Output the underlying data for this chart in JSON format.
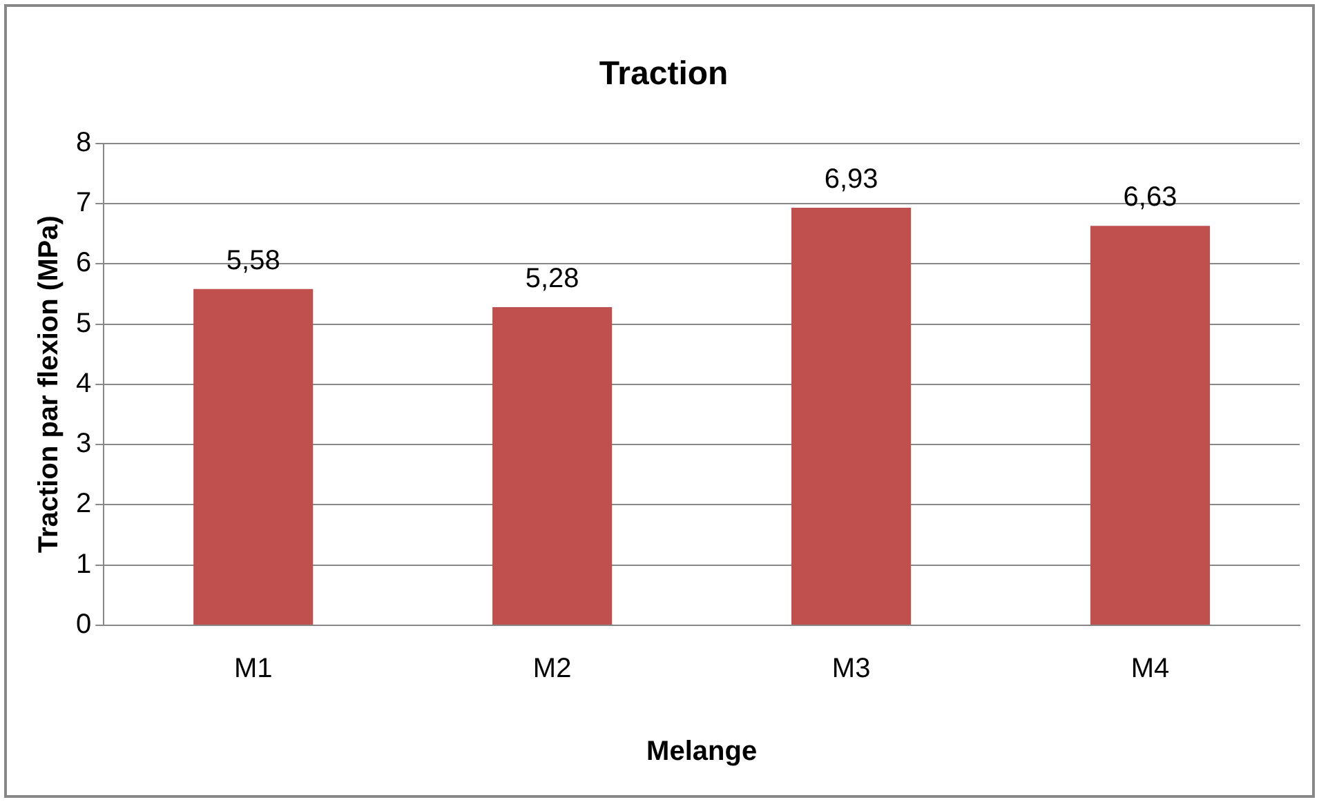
{
  "chart_data": {
    "type": "bar",
    "title": "Traction",
    "xlabel": "Melange",
    "ylabel": "Traction par flexion (MPa)",
    "categories": [
      "M1",
      "M2",
      "M3",
      "M4"
    ],
    "values": [
      5.58,
      5.28,
      6.93,
      6.63
    ],
    "value_labels": [
      "5,58",
      "5,28",
      "6,93",
      "6,63"
    ],
    "color": "#c0504d",
    "ylim": [
      0,
      8
    ],
    "yticks": [
      0,
      1,
      2,
      3,
      4,
      5,
      6,
      7,
      8
    ],
    "grid": "y",
    "legend": false
  }
}
